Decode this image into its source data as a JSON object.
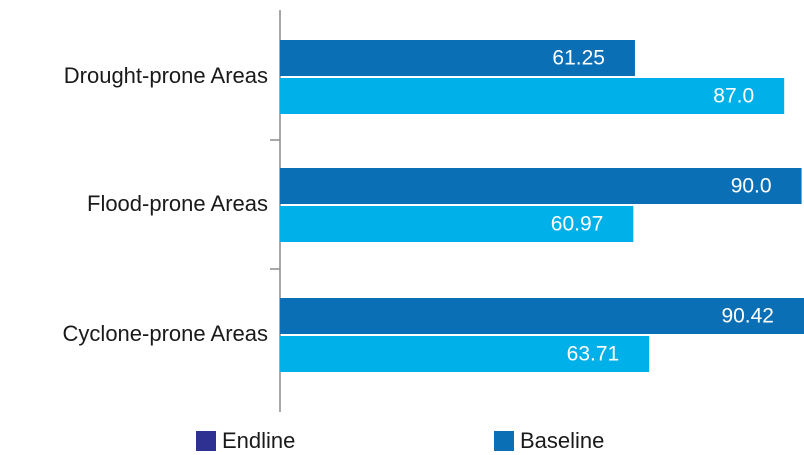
{
  "chart_data": {
    "type": "bar",
    "orientation": "horizontal",
    "categories": [
      "Drought-prone Areas",
      "Flood-prone Areas",
      "Cyclone-prone Areas"
    ],
    "series": [
      {
        "name": "Endline",
        "values": [
          61.25,
          90.0,
          90.42
        ],
        "labels": [
          "61.25",
          "90.0",
          "90.42"
        ],
        "color": "#0b6fb5",
        "legend_color": "#2e3192"
      },
      {
        "name": "Baseline",
        "values": [
          87.0,
          60.97,
          63.71
        ],
        "labels": [
          "87.0",
          "60.97",
          "63.71"
        ],
        "color": "#00b0e8",
        "legend_color": "#0b6fb5"
      }
    ],
    "xlim": [
      0,
      90.42
    ],
    "grid": false,
    "legend_position": "bottom"
  }
}
